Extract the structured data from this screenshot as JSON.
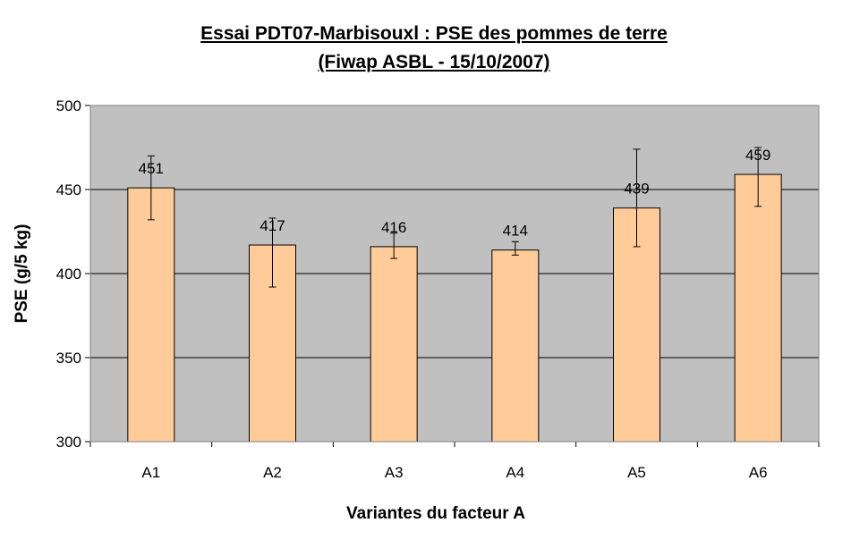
{
  "chart_data": {
    "type": "bar",
    "title": "Essai PDT07-Marbisouxl : PSE des pommes de terre",
    "subtitle": "(Fiwap ASBL - 15/10/2007)",
    "xlabel": "Variantes du facteur A",
    "ylabel": "PSE (g/5 kg)",
    "ylim": [
      300,
      500
    ],
    "yticks": [
      300,
      350,
      400,
      450,
      500
    ],
    "grid": true,
    "categories": [
      "A1",
      "A2",
      "A3",
      "A4",
      "A5",
      "A6"
    ],
    "values": [
      451,
      417,
      416,
      414,
      439,
      459
    ],
    "data_labels": [
      "451",
      "417",
      "416",
      "414",
      "439",
      "459"
    ],
    "error_low": [
      432,
      392,
      409,
      411,
      416,
      440
    ],
    "error_high": [
      470,
      433,
      424,
      419,
      474,
      475
    ],
    "colors": {
      "bar_fill": "#FFCC99",
      "bar_stroke": "#000000",
      "plot_background": "#C0C0C0",
      "gridline": "#000000"
    }
  }
}
